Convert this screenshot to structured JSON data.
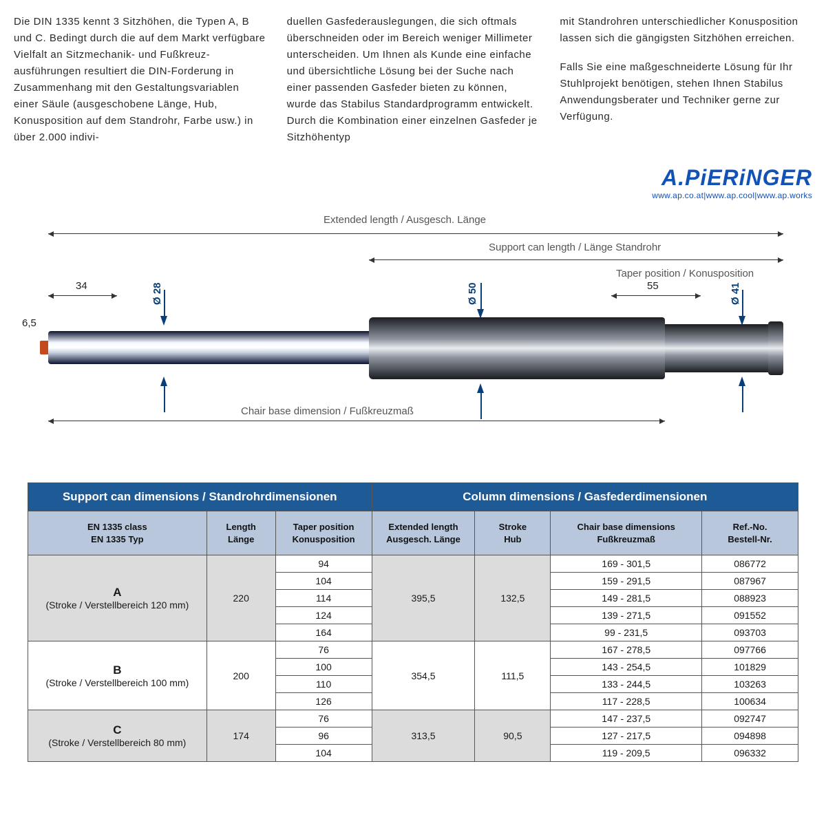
{
  "text": {
    "col1": "Die DIN 1335 kennt 3 Sitzhöhen, die Typen A, B und C. Bedingt durch die auf dem Markt verfügbare Vielfalt an Sitzmechanik- und Fußkreuz­ausführungen resultiert die DIN-Forderung in Zusammenhang mit den Gestaltungsvariablen einer Säule (ausgeschobene Länge, Hub, Konusposition auf dem Standrohr, Farbe usw.) in über 2.000 indivi-",
    "col2": "duellen Gasfederauslegungen, die sich oftmals überschneiden oder im Bereich weniger Millimeter unter­scheiden. Um Ihnen als Kunde eine einfache und übersichtliche Lösung bei der Suche nach einer passenden Gasfeder bieten zu können, wurde das Stabilus Standardprogramm ent­wickelt. Durch die Kombination einer einzelnen Gasfeder je Sitzhöhentyp",
    "col3a": "mit Standrohren unterschiedlicher Konusposition lassen sich die gängigsten Sitzhöhen erreichen.",
    "col3b": "Falls Sie eine maßgeschneiderte Lö­sung für Ihr Stuhlprojekt benötigen, stehen Ihnen Stabilus Anwendungs­berater und Techniker gerne zur Verfügung."
  },
  "logo": {
    "name": "A.PiERiNGER",
    "urls": "www.ap.co.at|www.ap.cool|www.ap.works"
  },
  "diagram": {
    "labels": {
      "extended": "Extended length /  Ausgesch. Länge",
      "support": "Support can length / Länge Standrohr",
      "taper": "Taper position / Konusposition",
      "chairbase": "Chair base dimension / Fußkreuzmaß",
      "d28": "Ø 28",
      "d50": "Ø 50",
      "d41": "Ø 41",
      "n34": "34",
      "n55": "55",
      "n65": "6,5"
    },
    "colors": {
      "arrow": "#0a3e78",
      "text": "#555555"
    }
  },
  "table": {
    "header_left": "Support can dimensions / Standrohrdimensionen",
    "header_right": "Column dimensions / Gasfederdimensionen",
    "cols": {
      "class": "EN 1335 class\nEN 1335 Typ",
      "length": "Length\nLänge",
      "taper": "Taper position\nKonusposition",
      "ext": "Extended length\nAusgesch. Länge",
      "stroke": "Stroke\nHub",
      "chairbase": "Chair base dimensions\nFußkreuzmaß",
      "ref": "Ref.-No.\nBestell-Nr."
    },
    "groups": [
      {
        "class_label": "A",
        "class_sub": "(Stroke / Verstellbereich 120 mm)",
        "length": "220",
        "ext": "395,5",
        "stroke": "132,5",
        "rows": [
          {
            "taper": "94",
            "chairbase": "169 - 301,5",
            "ref": "086772"
          },
          {
            "taper": "104",
            "chairbase": "159 - 291,5",
            "ref": "087967"
          },
          {
            "taper": "114",
            "chairbase": "149 - 281,5",
            "ref": "088923"
          },
          {
            "taper": "124",
            "chairbase": "139 - 271,5",
            "ref": "091552"
          },
          {
            "taper": "164",
            "chairbase": "99 - 231,5",
            "ref": "093703"
          }
        ]
      },
      {
        "class_label": "B",
        "class_sub": "(Stroke / Verstellbereich 100 mm)",
        "length": "200",
        "ext": "354,5",
        "stroke": "111,5",
        "rows": [
          {
            "taper": "76",
            "chairbase": "167 - 278,5",
            "ref": "097766"
          },
          {
            "taper": "100",
            "chairbase": "143 - 254,5",
            "ref": "101829"
          },
          {
            "taper": "110",
            "chairbase": "133 - 244,5",
            "ref": "103263"
          },
          {
            "taper": "126",
            "chairbase": "117 - 228,5",
            "ref": "100634"
          }
        ]
      },
      {
        "class_label": "C",
        "class_sub": "(Stroke / Verstellbereich 80 mm)",
        "length": "174",
        "ext": "313,5",
        "stroke": "90,5",
        "rows": [
          {
            "taper": "76",
            "chairbase": "147 - 237,5",
            "ref": "092747"
          },
          {
            "taper": "96",
            "chairbase": "127 - 217,5",
            "ref": "094898"
          },
          {
            "taper": "104",
            "chairbase": "119 - 209,5",
            "ref": "096332"
          }
        ]
      }
    ],
    "colors": {
      "header_bg": "#1e5a96",
      "subheader_bg": "#b9c7dc",
      "shade_bg": "#dcdcdc",
      "border": "#555555"
    }
  }
}
